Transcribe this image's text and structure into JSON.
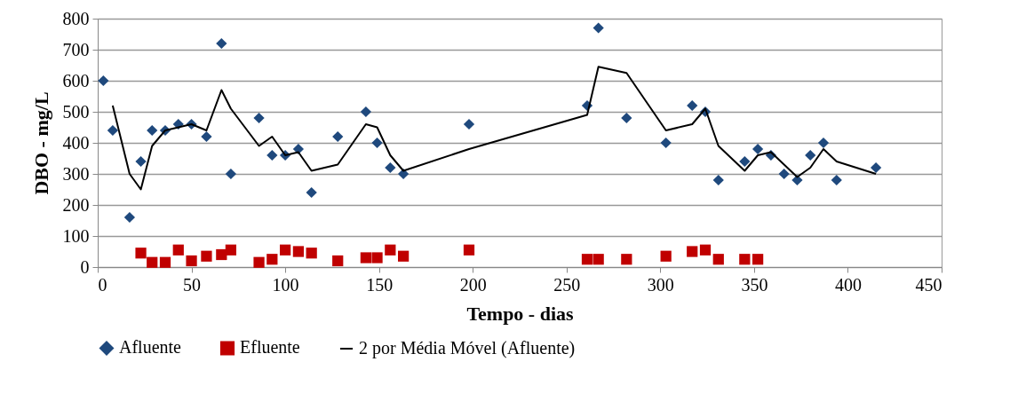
{
  "chart_data": {
    "type": "scatter",
    "xlabel": "Tempo - dias",
    "ylabel": "DBO - mg/L",
    "xlim": [
      0,
      450
    ],
    "xticks": [
      0,
      50,
      100,
      150,
      200,
      250,
      300,
      350,
      400,
      450
    ],
    "ylim": [
      0,
      800
    ],
    "yticks": [
      0,
      100,
      200,
      300,
      400,
      500,
      600,
      700,
      800
    ],
    "grid": "y",
    "legend": "bottom",
    "series": [
      {
        "name": "Afluente",
        "marker": "diamond",
        "color": "#1f497d",
        "x": [
          3,
          8,
          17,
          23,
          29,
          36,
          43,
          50,
          58,
          66,
          71,
          86,
          93,
          100,
          107,
          114,
          128,
          143,
          149,
          156,
          163,
          198,
          261,
          267,
          282,
          303,
          317,
          324,
          331,
          345,
          352,
          359,
          366,
          373,
          380,
          387,
          394,
          415
        ],
        "values": [
          600,
          440,
          160,
          340,
          440,
          440,
          460,
          460,
          420,
          720,
          300,
          480,
          360,
          360,
          380,
          240,
          420,
          500,
          400,
          320,
          300,
          460,
          520,
          770,
          480,
          400,
          520,
          500,
          280,
          340,
          380,
          360,
          300,
          280,
          360,
          400,
          280,
          320
        ]
      },
      {
        "name": "Efluente",
        "marker": "square",
        "color": "#c00000",
        "x": [
          23,
          29,
          36,
          43,
          50,
          58,
          66,
          71,
          86,
          93,
          100,
          107,
          114,
          128,
          143,
          149,
          156,
          163,
          198,
          261,
          267,
          282,
          303,
          317,
          324,
          331,
          345,
          352
        ],
        "values": [
          45,
          15,
          15,
          55,
          20,
          35,
          40,
          55,
          15,
          25,
          55,
          50,
          45,
          20,
          30,
          30,
          55,
          35,
          55,
          25,
          25,
          25,
          35,
          50,
          55,
          25,
          25,
          25
        ]
      },
      {
        "name": "2 por Média Móvel (Afluente)",
        "type": "line",
        "marker": "none",
        "line_style": "solid",
        "color": "#000000",
        "x": [
          8,
          17,
          23,
          29,
          36,
          43,
          50,
          58,
          66,
          71,
          86,
          93,
          100,
          107,
          114,
          128,
          143,
          149,
          156,
          163,
          198,
          261,
          267,
          282,
          303,
          317,
          324,
          331,
          345,
          352,
          359,
          366,
          373,
          380,
          387,
          394,
          415
        ],
        "values": [
          520,
          300,
          250,
          390,
          440,
          450,
          460,
          440,
          570,
          510,
          390,
          420,
          360,
          370,
          310,
          330,
          460,
          450,
          360,
          310,
          380,
          490,
          645,
          625,
          440,
          460,
          510,
          390,
          310,
          360,
          370,
          330,
          290,
          320,
          380,
          340,
          300
        ]
      }
    ]
  }
}
